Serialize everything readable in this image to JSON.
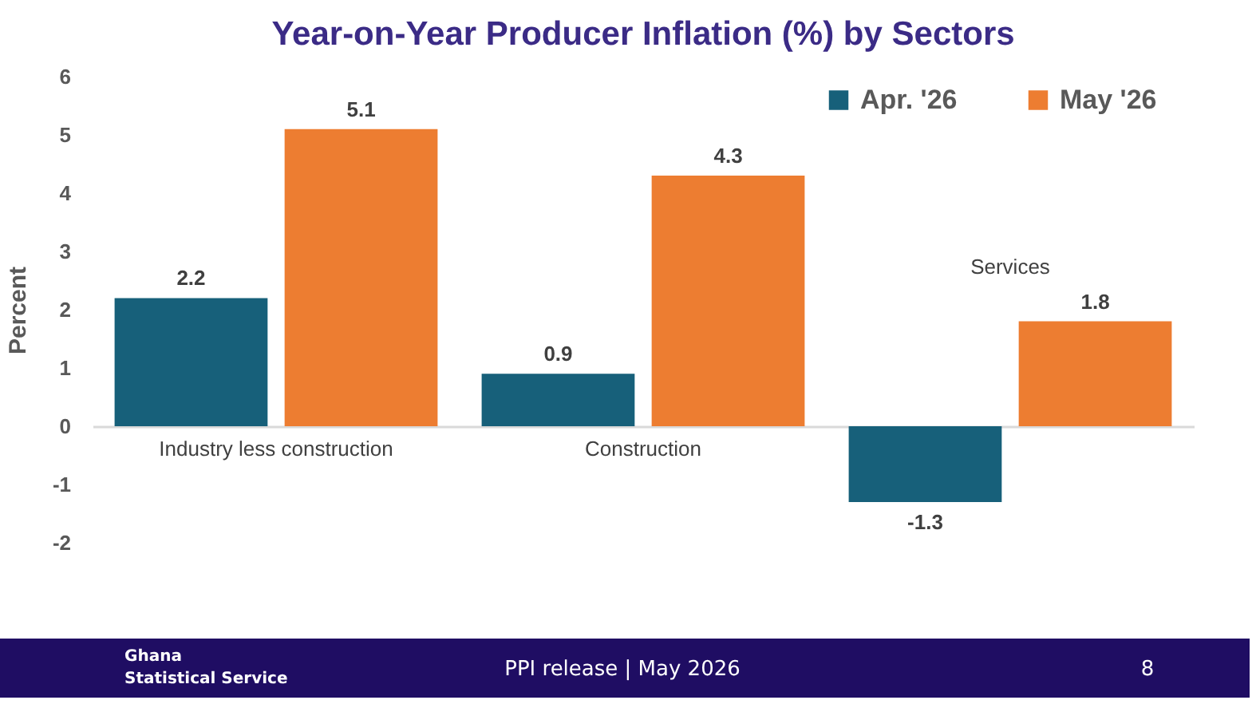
{
  "chart_data": {
    "type": "bar",
    "title": "Year-on-Year Producer Inflation (%) by Sectors",
    "ylabel": "Percent",
    "categories": [
      "Industry less construction",
      "Construction",
      "Services"
    ],
    "series": [
      {
        "name": "Apr. '26",
        "color": "#17607a",
        "values": [
          2.2,
          0.9,
          -1.3
        ]
      },
      {
        "name": "May '26",
        "color": "#ed7d31",
        "values": [
          5.1,
          4.3,
          1.8
        ]
      }
    ],
    "ylim": [
      -2,
      6
    ],
    "yticks": [
      -2,
      -1,
      0,
      1,
      2,
      3,
      4,
      5,
      6
    ],
    "grid": false,
    "legend": "top right",
    "data_labels": true,
    "annotations": [
      "Ghana\nStatistical Service",
      "PPI release | May 2026",
      "8"
    ]
  }
}
